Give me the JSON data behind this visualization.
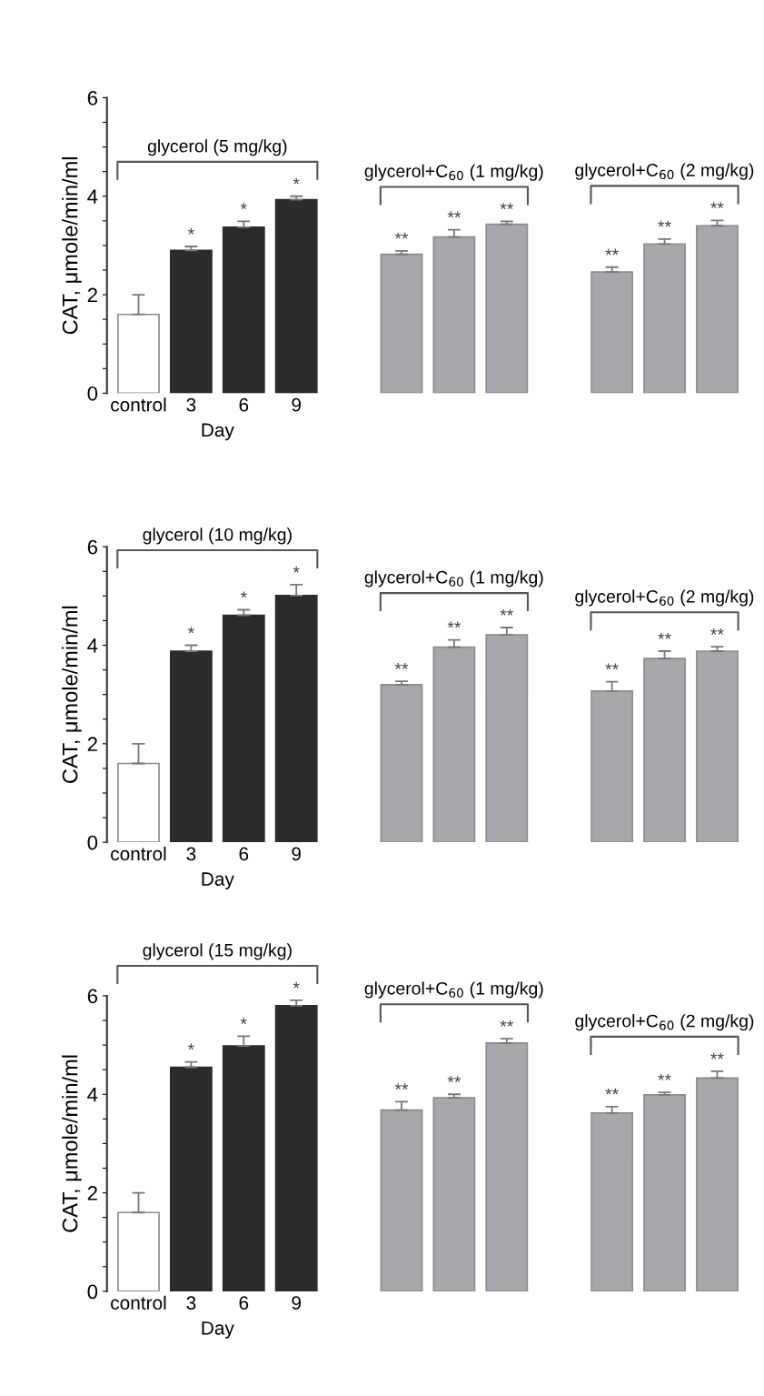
{
  "chart_data": [
    {
      "type": "bar",
      "ylabel": "CAT, μmole/min/ml",
      "xlabel": "Day",
      "categories": [
        "control",
        "3",
        "6",
        "9",
        null,
        null,
        null,
        null,
        null,
        null,
        null,
        null
      ],
      "values": [
        1.6,
        2.9,
        3.37,
        3.93,
        null,
        2.82,
        3.17,
        3.43,
        null,
        2.46,
        3.03,
        3.4
      ],
      "errors": [
        0.4,
        0.08,
        0.12,
        0.07,
        null,
        0.07,
        0.15,
        0.06,
        null,
        0.1,
        0.1,
        0.11
      ],
      "value_labels": [
        null,
        "*",
        "*",
        "*",
        null,
        "**",
        "**",
        "**",
        null,
        "**",
        "**",
        "**"
      ],
      "colors": [
        "#ffffff",
        "#2b2b2b",
        "#2b2b2b",
        "#2b2b2b",
        null,
        "#a7a8ab",
        "#a7a8ab",
        "#a7a8ab",
        null,
        "#a7a8ab",
        "#a7a8ab",
        "#a7a8ab"
      ],
      "annotations": [
        "glycerol (5 mg/kg)",
        "glycerol+C$_{60}$ (1 mg/kg)",
        "glycerol+C$_{60}$ (2 mg/kg)"
      ],
      "ylim": [
        0,
        6
      ],
      "yticks": [
        0,
        {
          "value": 0.5,
          "label": null
        },
        {
          "value": 1,
          "label": null
        },
        {
          "value": 1.5,
          "label": null
        },
        2,
        {
          "value": 2.5,
          "label": null
        },
        {
          "value": 3,
          "label": null
        },
        {
          "value": 3.5,
          "label": null
        },
        4,
        {
          "value": 4.5,
          "label": null
        },
        {
          "value": 5,
          "label": null
        },
        {
          "value": 5.5,
          "label": null
        },
        6
      ],
      "grid": false,
      "legend": false
    },
    {
      "type": "bar",
      "ylabel": "CAT, μmole/min/ml",
      "xlabel": "Day",
      "categories": [
        "control",
        "3",
        "6",
        "9",
        null,
        null,
        null,
        null,
        null,
        null,
        null,
        null
      ],
      "values": [
        1.6,
        3.88,
        4.61,
        5.01,
        null,
        3.2,
        3.96,
        4.21,
        null,
        3.07,
        3.73,
        3.88
      ],
      "errors": [
        0.4,
        0.12,
        0.11,
        0.22,
        null,
        0.07,
        0.15,
        0.15,
        null,
        0.19,
        0.15,
        0.09
      ],
      "value_labels": [
        null,
        "*",
        "*",
        "*",
        null,
        "**",
        "**",
        "**",
        null,
        "**",
        "**",
        "**"
      ],
      "colors": [
        "#ffffff",
        "#2b2b2b",
        "#2b2b2b",
        "#2b2b2b",
        null,
        "#a7a8ab",
        "#a7a8ab",
        "#a7a8ab",
        null,
        "#a7a8ab",
        "#a7a8ab",
        "#a7a8ab"
      ],
      "annotations": [
        "glycerol (10 mg/kg)",
        "glycerol+C$_{60}$ (1 mg/kg)",
        "glycerol+C$_{60}$ (2 mg/kg)"
      ],
      "ylim": [
        0,
        6
      ],
      "yticks": [
        0,
        {
          "value": 0.5,
          "label": null
        },
        {
          "value": 1,
          "label": null
        },
        {
          "value": 1.5,
          "label": null
        },
        2,
        {
          "value": 2.5,
          "label": null
        },
        {
          "value": 3,
          "label": null
        },
        {
          "value": 3.5,
          "label": null
        },
        4,
        {
          "value": 4.5,
          "label": null
        },
        {
          "value": 5,
          "label": null
        },
        {
          "value": 5.5,
          "label": null
        },
        6
      ],
      "grid": false,
      "legend": false
    },
    {
      "type": "bar",
      "ylabel": "CAT, μmole/min/ml",
      "xlabel": "Day",
      "categories": [
        "control",
        "3",
        "6",
        "9",
        null,
        null,
        null,
        null,
        null,
        null,
        null,
        null
      ],
      "values": [
        1.6,
        4.55,
        4.98,
        5.8,
        null,
        3.68,
        3.93,
        5.04,
        null,
        3.62,
        3.99,
        4.33
      ],
      "errors": [
        0.4,
        0.11,
        0.2,
        0.11,
        null,
        0.17,
        0.07,
        0.09,
        null,
        0.13,
        0.05,
        0.14
      ],
      "value_labels": [
        null,
        "*",
        "*",
        "*",
        null,
        "**",
        "**",
        "**",
        null,
        "**",
        "**",
        "**"
      ],
      "colors": [
        "#ffffff",
        "#2b2b2b",
        "#2b2b2b",
        "#2b2b2b",
        null,
        "#a7a8ab",
        "#a7a8ab",
        "#a7a8ab",
        null,
        "#a7a8ab",
        "#a7a8ab",
        "#a7a8ab"
      ],
      "annotations": [
        "glycerol (15 mg/kg)",
        "glycerol+C$_{60}$ (1 mg/kg)",
        "glycerol+C$_{60}$ (2 mg/kg)"
      ],
      "ylim": [
        0,
        6
      ],
      "yticks": [
        0,
        {
          "value": 0.5,
          "label": null
        },
        {
          "value": 1,
          "label": null
        },
        {
          "value": 1.5,
          "label": null
        },
        2,
        {
          "value": 2.5,
          "label": null
        },
        {
          "value": 3,
          "label": null
        },
        {
          "value": 3.5,
          "label": null
        },
        4,
        {
          "value": 4.5,
          "label": null
        },
        {
          "value": 5,
          "label": null
        },
        {
          "value": 5.5,
          "label": null
        },
        6
      ],
      "grid": false,
      "legend": false
    }
  ]
}
